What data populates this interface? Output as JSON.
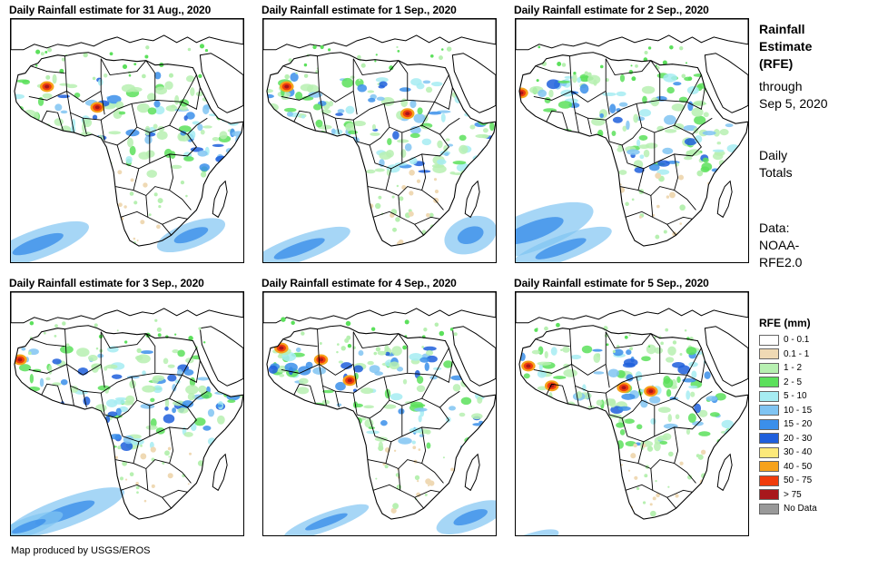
{
  "panels": [
    {
      "title": "Daily Rainfall estimate for 31 Aug., 2020"
    },
    {
      "title": "Daily Rainfall estimate for 1 Sep., 2020"
    },
    {
      "title": "Daily Rainfall estimate for 2 Sep., 2020"
    },
    {
      "title": "Daily Rainfall estimate for 3 Sep., 2020"
    },
    {
      "title": "Daily Rainfall estimate for 4 Sep., 2020"
    },
    {
      "title": "Daily Rainfall estimate for 5 Sep., 2020"
    }
  ],
  "sidebar": {
    "title_line1": "Rainfall",
    "title_line2": "Estimate",
    "title_line3": "(RFE)",
    "through_line1": "through",
    "through_line2": "Sep 5, 2020",
    "daily_line1": "Daily",
    "daily_line2": "Totals",
    "data_line1": "Data:",
    "data_line2": "NOAA-",
    "data_line3": "RFE2.0"
  },
  "legend": {
    "title": "RFE (mm)",
    "items": [
      {
        "label": "0 - 0.1",
        "color": "#ffffff"
      },
      {
        "label": "0.1 - 1",
        "color": "#efd9b4"
      },
      {
        "label": "1 - 2",
        "color": "#b7f0b1"
      },
      {
        "label": "2 - 5",
        "color": "#5ce05c"
      },
      {
        "label": "5 - 10",
        "color": "#a6ecf2"
      },
      {
        "label": "10 - 15",
        "color": "#80c4f2"
      },
      {
        "label": "15 - 20",
        "color": "#3b8fea"
      },
      {
        "label": "20 - 30",
        "color": "#1f5fdc"
      },
      {
        "label": "30 - 40",
        "color": "#fce97a"
      },
      {
        "label": "40 - 50",
        "color": "#f6a21b"
      },
      {
        "label": "50 - 75",
        "color": "#f03c0c"
      },
      {
        "label": "> 75",
        "color": "#a8171c"
      },
      {
        "label": "No Data",
        "color": "#999999"
      }
    ]
  },
  "footer": {
    "credit": "Map produced by USGS/EROS"
  }
}
